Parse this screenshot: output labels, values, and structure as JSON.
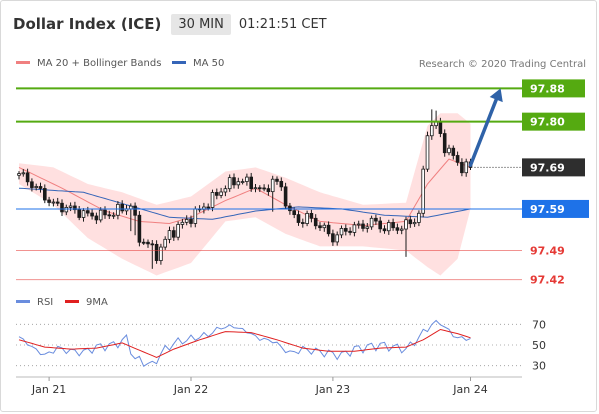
{
  "header": {
    "title": "Dollar Index (ICE)",
    "interval": "30 MIN",
    "time": "01:21:51 CET"
  },
  "credit": "Research © 2020 Trading Central",
  "colors": {
    "resistance": "#55aa11",
    "pivot": "#2e2e2e",
    "support_primary": "#1e72e8",
    "support": "#e53935",
    "price": "#1a1a1a",
    "bollinger_band": "#ffd6d6",
    "ma20": "#f08080",
    "ma50": "#3565b8",
    "arrow": "#2f62a8",
    "rsi": "#6a8dde",
    "rsi_ma": "#e02020",
    "grid_dot": "#999999"
  },
  "chart_data": [
    {
      "type": "candlestick",
      "title": "Dollar Index (ICE)",
      "interval": "30 MIN",
      "legend": [
        {
          "name": "MA 20 + Bollinger Bands",
          "color": "#f08080"
        },
        {
          "name": "MA 50",
          "color": "#3565b8"
        }
      ],
      "x_ticks": [
        "Jan 21",
        "Jan 22",
        "Jan 23",
        "Jan 24"
      ],
      "ylim": [
        97.395,
        97.905
      ],
      "levels": [
        {
          "value": 97.88,
          "label": "97.88",
          "kind": "resistance"
        },
        {
          "value": 97.8,
          "label": "97.80",
          "kind": "resistance"
        },
        {
          "value": 97.69,
          "label": "97.69",
          "kind": "pivot"
        },
        {
          "value": 97.59,
          "label": "97.59",
          "kind": "support_primary"
        },
        {
          "value": 97.49,
          "label": "97.49",
          "kind": "support"
        },
        {
          "value": 97.42,
          "label": "97.42",
          "kind": "support"
        }
      ],
      "price_knots": [
        [
          0,
          97.675
        ],
        [
          3,
          97.65
        ],
        [
          8,
          97.6
        ],
        [
          12,
          97.59
        ],
        [
          16,
          97.575
        ],
        [
          20,
          97.575
        ],
        [
          24,
          97.59
        ],
        [
          26,
          97.6
        ],
        [
          28,
          97.52
        ],
        [
          30,
          97.505
        ],
        [
          32,
          97.48
        ],
        [
          35,
          97.53
        ],
        [
          40,
          97.57
        ],
        [
          44,
          97.605
        ],
        [
          48,
          97.645
        ],
        [
          51,
          97.66
        ],
        [
          54,
          97.65
        ],
        [
          57,
          97.63
        ],
        [
          59,
          97.66
        ],
        [
          61,
          97.64
        ],
        [
          63,
          97.58
        ],
        [
          65,
          97.56
        ],
        [
          67,
          97.57
        ],
        [
          70,
          97.55
        ],
        [
          73,
          97.52
        ],
        [
          76,
          97.54
        ],
        [
          80,
          97.55
        ],
        [
          83,
          97.56
        ],
        [
          85,
          97.54
        ],
        [
          87,
          97.55
        ],
        [
          89,
          97.54
        ],
        [
          91,
          97.565
        ],
        [
          92,
          97.56
        ],
        [
          93,
          97.575
        ],
        [
          95,
          97.78
        ],
        [
          97,
          97.795
        ],
        [
          99,
          97.74
        ],
        [
          101,
          97.715
        ],
        [
          103,
          97.69
        ],
        [
          105,
          97.69
        ]
      ],
      "ma20_knots": [
        [
          0,
          97.69
        ],
        [
          10,
          97.64
        ],
        [
          20,
          97.585
        ],
        [
          28,
          97.56
        ],
        [
          35,
          97.555
        ],
        [
          40,
          97.57
        ],
        [
          48,
          97.61
        ],
        [
          55,
          97.64
        ],
        [
          62,
          97.6
        ],
        [
          70,
          97.56
        ],
        [
          80,
          97.55
        ],
        [
          90,
          97.56
        ],
        [
          95,
          97.65
        ],
        [
          100,
          97.71
        ],
        [
          105,
          97.69
        ]
      ],
      "upper_band_knots": [
        [
          0,
          97.7
        ],
        [
          8,
          97.69
        ],
        [
          16,
          97.65
        ],
        [
          24,
          97.63
        ],
        [
          32,
          97.6
        ],
        [
          40,
          97.62
        ],
        [
          48,
          97.68
        ],
        [
          55,
          97.69
        ],
        [
          62,
          97.665
        ],
        [
          70,
          97.63
        ],
        [
          80,
          97.6
        ],
        [
          90,
          97.605
        ],
        [
          95,
          97.79
        ],
        [
          98,
          97.82
        ],
        [
          102,
          97.82
        ],
        [
          105,
          97.795
        ]
      ],
      "lower_band_knots": [
        [
          0,
          97.65
        ],
        [
          8,
          97.6
        ],
        [
          16,
          97.52
        ],
        [
          24,
          97.47
        ],
        [
          32,
          97.43
        ],
        [
          40,
          97.46
        ],
        [
          48,
          97.56
        ],
        [
          55,
          97.57
        ],
        [
          62,
          97.53
        ],
        [
          70,
          97.5
        ],
        [
          80,
          97.5
        ],
        [
          90,
          97.49
        ],
        [
          95,
          97.45
        ],
        [
          98,
          97.43
        ],
        [
          102,
          97.47
        ],
        [
          105,
          97.59
        ]
      ],
      "ma50_knots": [
        [
          0,
          97.64
        ],
        [
          15,
          97.63
        ],
        [
          25,
          97.6
        ],
        [
          35,
          97.57
        ],
        [
          45,
          97.565
        ],
        [
          55,
          97.585
        ],
        [
          65,
          97.595
        ],
        [
          75,
          97.59
        ],
        [
          85,
          97.575
        ],
        [
          95,
          97.57
        ],
        [
          100,
          97.58
        ],
        [
          105,
          97.59
        ]
      ],
      "forecast_arrow": {
        "from": [
          105,
          97.695
        ],
        "to": [
          112,
          97.88
        ]
      }
    },
    {
      "type": "line",
      "title": "RSI",
      "legend": [
        {
          "name": "RSI",
          "color": "#6a8dde"
        },
        {
          "name": "9MA",
          "color": "#e02020"
        }
      ],
      "y_ticks": [
        70,
        50,
        30
      ],
      "ylim": [
        20,
        80
      ],
      "rsi_knots": [
        [
          0,
          58
        ],
        [
          3,
          48
        ],
        [
          6,
          40
        ],
        [
          9,
          47
        ],
        [
          12,
          44
        ],
        [
          15,
          43
        ],
        [
          18,
          48
        ],
        [
          22,
          50
        ],
        [
          25,
          56
        ],
        [
          27,
          36
        ],
        [
          29,
          34
        ],
        [
          31,
          30
        ],
        [
          33,
          42
        ],
        [
          36,
          52
        ],
        [
          40,
          56
        ],
        [
          44,
          60
        ],
        [
          47,
          67
        ],
        [
          50,
          68
        ],
        [
          53,
          63
        ],
        [
          56,
          56
        ],
        [
          59,
          54
        ],
        [
          61,
          48
        ],
        [
          63,
          42
        ],
        [
          66,
          46
        ],
        [
          69,
          44
        ],
        [
          72,
          42
        ],
        [
          75,
          40
        ],
        [
          78,
          46
        ],
        [
          81,
          48
        ],
        [
          84,
          50
        ],
        [
          87,
          48
        ],
        [
          90,
          46
        ],
        [
          92,
          53
        ],
        [
          94,
          62
        ],
        [
          96,
          70
        ],
        [
          98,
          72
        ],
        [
          100,
          63
        ],
        [
          102,
          57
        ],
        [
          104,
          56
        ],
        [
          105,
          56
        ]
      ],
      "rsi_ma_knots": [
        [
          0,
          55
        ],
        [
          6,
          48
        ],
        [
          12,
          46
        ],
        [
          18,
          47
        ],
        [
          24,
          52
        ],
        [
          28,
          45
        ],
        [
          32,
          38
        ],
        [
          36,
          46
        ],
        [
          42,
          55
        ],
        [
          48,
          63
        ],
        [
          54,
          62
        ],
        [
          60,
          55
        ],
        [
          66,
          47
        ],
        [
          72,
          44
        ],
        [
          78,
          44
        ],
        [
          84,
          47
        ],
        [
          90,
          48
        ],
        [
          94,
          55
        ],
        [
          98,
          65
        ],
        [
          102,
          61
        ],
        [
          105,
          57
        ]
      ]
    }
  ]
}
